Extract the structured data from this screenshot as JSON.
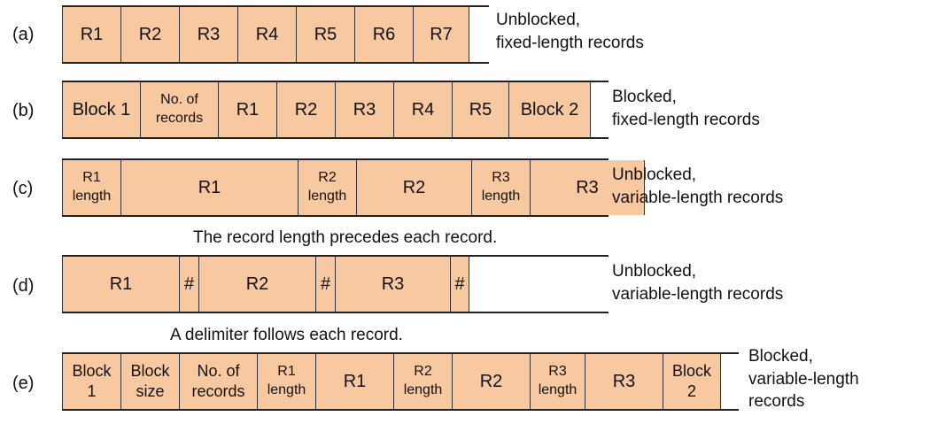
{
  "rows": [
    {
      "label": "(a)",
      "cells": [
        "R1",
        "R2",
        "R3",
        "R4",
        "R5",
        "R6",
        "R7"
      ],
      "description": "Unblocked,\nfixed-length records"
    },
    {
      "label": "(b)",
      "cells": [
        "Block 1",
        "No. of\nrecords",
        "R1",
        "R2",
        "R3",
        "R4",
        "R5",
        "Block 2"
      ],
      "description": "Blocked,\nfixed-length records"
    },
    {
      "label": "(c)",
      "cells": [
        "R1\nlength",
        "R1",
        "R2\nlength",
        "R2",
        "R3\nlength",
        "R3"
      ],
      "description": "Unblocked,\nvariable-length records",
      "caption": "The record length precedes each record."
    },
    {
      "label": "(d)",
      "cells": [
        "R1",
        "#",
        "R2",
        "#",
        "R3",
        "#"
      ],
      "description": "Unblocked,\nvariable-length records",
      "caption": "A delimiter follows each record."
    },
    {
      "label": "(e)",
      "cells": [
        "Block\n1",
        "Block\nsize",
        "No. of\nrecords",
        "R1\nlength",
        "R1",
        "R2\nlength",
        "R2",
        "R3\nlength",
        "R3",
        "Block\n2"
      ],
      "description": "Blocked,\nvariable-length\nrecords"
    }
  ]
}
